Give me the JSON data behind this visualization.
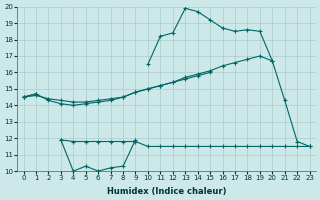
{
  "xlabel": "Humidex (Indice chaleur)",
  "xlim": [
    -0.5,
    23.5
  ],
  "ylim": [
    10,
    20
  ],
  "yticks": [
    10,
    11,
    12,
    13,
    14,
    15,
    16,
    17,
    18,
    19,
    20
  ],
  "xticks": [
    0,
    1,
    2,
    3,
    4,
    5,
    6,
    7,
    8,
    9,
    10,
    11,
    12,
    13,
    14,
    15,
    16,
    17,
    18,
    19,
    20,
    21,
    22,
    23
  ],
  "bg_color": "#cce8e8",
  "line_color": "#006666",
  "grid_color": "#aacccc",
  "lines": [
    {
      "x": [
        0,
        1,
        2,
        3,
        4,
        5,
        6,
        7,
        8,
        9,
        10,
        11,
        12,
        13,
        14,
        15,
        16,
        17,
        18,
        19,
        20,
        21,
        22,
        23
      ],
      "y": [
        14.5,
        14.7,
        null,
        null,
        null,
        null,
        null,
        null,
        null,
        null,
        16.5,
        18.2,
        18.4,
        19.9,
        19.7,
        19.2,
        18.7,
        18.5,
        18.6,
        18.5,
        16.7,
        14.3,
        11.8,
        11.5
      ]
    },
    {
      "x": [
        0,
        1,
        2,
        3,
        4,
        5,
        6,
        7,
        8,
        9,
        10,
        11,
        12,
        13,
        14,
        15,
        16,
        17,
        18,
        19,
        20
      ],
      "y": [
        14.5,
        14.6,
        14.4,
        14.3,
        14.2,
        14.2,
        14.3,
        14.4,
        14.5,
        14.8,
        15.0,
        15.2,
        15.4,
        15.7,
        15.9,
        16.1,
        16.4,
        16.6,
        16.8,
        17.0,
        16.7
      ]
    },
    {
      "x": [
        0,
        1,
        2,
        3,
        4,
        5,
        6,
        7,
        8,
        9,
        10,
        11,
        12,
        13,
        14,
        15
      ],
      "y": [
        14.5,
        14.7,
        14.3,
        14.1,
        14.0,
        14.1,
        14.2,
        14.3,
        14.5,
        14.8,
        15.0,
        15.2,
        15.4,
        15.6,
        15.8,
        16.0
      ]
    },
    {
      "x": [
        3,
        4,
        5,
        6,
        7,
        8,
        9
      ],
      "y": [
        11.9,
        10.0,
        10.3,
        10.0,
        10.2,
        10.3,
        11.9
      ]
    },
    {
      "x": [
        3,
        4,
        5,
        6,
        7,
        8,
        9,
        10,
        11,
        12,
        13,
        14,
        15,
        16,
        17,
        18,
        19,
        20,
        21,
        22,
        23
      ],
      "y": [
        11.9,
        11.8,
        11.8,
        11.8,
        11.8,
        11.8,
        11.8,
        11.5,
        11.5,
        11.5,
        11.5,
        11.5,
        11.5,
        11.5,
        11.5,
        11.5,
        11.5,
        11.5,
        11.5,
        11.5,
        11.5
      ]
    }
  ]
}
